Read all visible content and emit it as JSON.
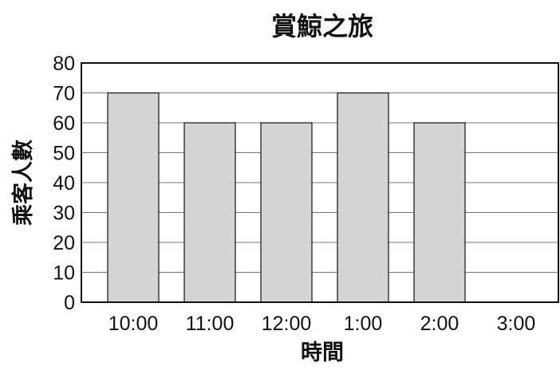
{
  "chart_data": {
    "type": "bar",
    "title": "賞鯨之旅",
    "xlabel": "時間",
    "ylabel": "乘客人數",
    "categories": [
      "10:00",
      "11:00",
      "12:00",
      "1:00",
      "2:00",
      "3:00"
    ],
    "values": [
      70,
      60,
      60,
      70,
      60,
      0
    ],
    "ylim": [
      0,
      80
    ],
    "yticks": [
      0,
      10,
      20,
      30,
      40,
      50,
      60,
      70,
      80
    ],
    "grid": true,
    "bar_color": "#d4d4d4",
    "edge_color": "#111111"
  }
}
